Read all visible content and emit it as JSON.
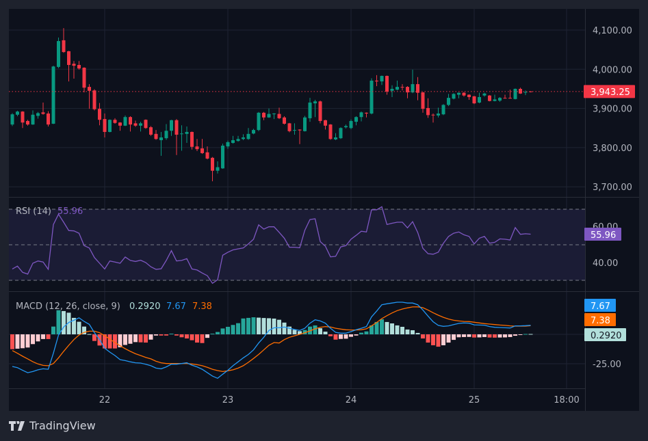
{
  "colors": {
    "up": "#089981",
    "down": "#f23645",
    "rsi": "#7e57c2",
    "macd": "#2196f3",
    "signal": "#ff6d00",
    "hist_up_strong": "#26a69a",
    "hist_up_weak": "#b2dfdb",
    "hist_down_strong": "#ff5252",
    "hist_down_weak": "#ffcdd2",
    "grid": "#1e2433",
    "background": "#0d111c"
  },
  "price_axis": {
    "ticks": [
      4100,
      4000,
      3900,
      3800,
      3700
    ],
    "labels": [
      "4,100.00",
      "4,000.00",
      "3,900.00",
      "3,800.00",
      "3,700.00"
    ],
    "last_price": 3943.25,
    "last_price_label": "3,943.25"
  },
  "time_axis": {
    "interval": "1h",
    "ticks": [
      {
        "t": "22T00",
        "label": "22"
      },
      {
        "t": "23T00",
        "label": "23"
      },
      {
        "t": "24T00",
        "label": "24"
      },
      {
        "t": "25T00",
        "label": "25"
      },
      {
        "t": "25T18",
        "label": "18:00"
      }
    ]
  },
  "rsi": {
    "label": "RSI (14)",
    "value_label": "55.96",
    "value": 55.96,
    "ticks": [
      60,
      40
    ],
    "tick_labels": [
      "60.00",
      "40.00"
    ],
    "bands": [
      70,
      50,
      30
    ]
  },
  "macd": {
    "label": "MACD (12, 26, close, 9)",
    "hist_label": "0.2920",
    "macd_label": "7.67",
    "signal_label": "7.38",
    "ticks": [
      -25
    ],
    "tick_labels": [
      "-25.00"
    ]
  },
  "branding": {
    "name": "TradingView"
  },
  "chart_data": {
    "type": "candlestick",
    "candles": [
      [
        "21T06",
        3859,
        3888,
        3855,
        3885
      ],
      [
        "21T07",
        3884,
        3894,
        3880,
        3892
      ],
      [
        "21T08",
        3892,
        3893,
        3850,
        3864
      ],
      [
        "21T09",
        3868,
        3871,
        3856,
        3859
      ],
      [
        "21T10",
        3859,
        3895,
        3858,
        3884
      ],
      [
        "21T11",
        3881,
        3891,
        3874,
        3888
      ],
      [
        "21T12",
        3890,
        3915,
        3884,
        3886
      ],
      [
        "21T13",
        3887,
        3893,
        3854,
        3859
      ],
      [
        "21T14",
        3861,
        4009,
        3860,
        4007
      ],
      [
        "21T15",
        4006,
        4081,
        4003,
        4072
      ],
      [
        "21T16",
        4074,
        4105,
        4042,
        4044
      ],
      [
        "21T17",
        4046,
        4047,
        3969,
        4011
      ],
      [
        "21T18",
        4014,
        4021,
        3976,
        4009
      ],
      [
        "21T19",
        4011,
        4021,
        3999,
        4002
      ],
      [
        "21T20",
        4004,
        4005,
        3941,
        3953
      ],
      [
        "21T21",
        3955,
        3962,
        3899,
        3945
      ],
      [
        "21T22",
        3946,
        3949,
        3895,
        3898
      ],
      [
        "21T23",
        3899,
        3914,
        3857,
        3871
      ],
      [
        "22T00",
        3873,
        3887,
        3826,
        3840
      ],
      [
        "22T01",
        3840,
        3872,
        3839,
        3871
      ],
      [
        "22T02",
        3871,
        3875,
        3861,
        3863
      ],
      [
        "22T03",
        3864,
        3865,
        3843,
        3856
      ],
      [
        "22T04",
        3856,
        3882,
        3855,
        3878
      ],
      [
        "22T05",
        3878,
        3880,
        3841,
        3859
      ],
      [
        "22T06",
        3862,
        3869,
        3853,
        3856
      ],
      [
        "22T07",
        3856,
        3866,
        3841,
        3862
      ],
      [
        "22T08",
        3871,
        3872,
        3848,
        3850
      ],
      [
        "22T09",
        3852,
        3855,
        3830,
        3833
      ],
      [
        "22T10",
        3835,
        3845,
        3820,
        3822
      ],
      [
        "22T11",
        3819,
        3840,
        3779,
        3826
      ],
      [
        "22T12",
        3824,
        3860,
        3820,
        3843
      ],
      [
        "22T13",
        3843,
        3871,
        3830,
        3870
      ],
      [
        "22T14",
        3870,
        3873,
        3781,
        3833
      ],
      [
        "22T15",
        3836,
        3857,
        3792,
        3836
      ],
      [
        "22T16",
        3835,
        3854,
        3812,
        3840
      ],
      [
        "22T17",
        3840,
        3841,
        3795,
        3802
      ],
      [
        "22T18",
        3803,
        3822,
        3791,
        3796
      ],
      [
        "22T19",
        3798,
        3822,
        3784,
        3786
      ],
      [
        "22T20",
        3788,
        3803,
        3770,
        3772
      ],
      [
        "22T21",
        3774,
        3776,
        3714,
        3741
      ],
      [
        "22T22",
        3741,
        3765,
        3734,
        3750
      ],
      [
        "22T23",
        3747,
        3810,
        3746,
        3805
      ],
      [
        "23T00",
        3803,
        3818,
        3797,
        3814
      ],
      [
        "23T01",
        3812,
        3830,
        3810,
        3819
      ],
      [
        "23T02",
        3817,
        3830,
        3815,
        3822
      ],
      [
        "23T03",
        3822,
        3834,
        3819,
        3826
      ],
      [
        "23T04",
        3822,
        3850,
        3820,
        3835
      ],
      [
        "23T05",
        3836,
        3848,
        3834,
        3845
      ],
      [
        "23T06",
        3845,
        3891,
        3842,
        3889
      ],
      [
        "23T07",
        3889,
        3891,
        3870,
        3877
      ],
      [
        "23T08",
        3877,
        3900,
        3876,
        3886
      ],
      [
        "23T09",
        3887,
        3888,
        3873,
        3887
      ],
      [
        "23T10",
        3886,
        3902,
        3873,
        3875
      ],
      [
        "23T11",
        3877,
        3880,
        3859,
        3861
      ],
      [
        "23T12",
        3862,
        3863,
        3839,
        3842
      ],
      [
        "23T13",
        3845,
        3862,
        3833,
        3845
      ],
      [
        "23T14",
        3846,
        3847,
        3809,
        3844
      ],
      [
        "23T15",
        3842,
        3881,
        3841,
        3877
      ],
      [
        "23T16",
        3875,
        3927,
        3866,
        3915
      ],
      [
        "23T17",
        3913,
        3922,
        3878,
        3918
      ],
      [
        "23T18",
        3918,
        3920,
        3862,
        3868
      ],
      [
        "23T19",
        3870,
        3871,
        3846,
        3856
      ],
      [
        "23T20",
        3859,
        3860,
        3820,
        3822
      ],
      [
        "23T21",
        3821,
        3837,
        3819,
        3826
      ],
      [
        "23T22",
        3824,
        3852,
        3822,
        3850
      ],
      [
        "23T23",
        3852,
        3859,
        3849,
        3855
      ],
      [
        "24T00",
        3850,
        3872,
        3847,
        3868
      ],
      [
        "24T01",
        3866,
        3880,
        3857,
        3878
      ],
      [
        "24T02",
        3878,
        3892,
        3867,
        3890
      ],
      [
        "24T03",
        3889,
        3890,
        3877,
        3887
      ],
      [
        "24T04",
        3887,
        3977,
        3885,
        3971
      ],
      [
        "24T05",
        3971,
        3985,
        3957,
        3969
      ],
      [
        "24T06",
        3969,
        3984,
        3960,
        3983
      ],
      [
        "24T07",
        3983,
        3984,
        3935,
        3943
      ],
      [
        "24T08",
        3945,
        3959,
        3929,
        3950
      ],
      [
        "24T09",
        3948,
        3971,
        3946,
        3955
      ],
      [
        "24T10",
        3955,
        3962,
        3946,
        3954
      ],
      [
        "24T11",
        3955,
        3957,
        3926,
        3941
      ],
      [
        "24T12",
        3941,
        3999,
        3939,
        3962
      ],
      [
        "24T13",
        3962,
        3980,
        3921,
        3940
      ],
      [
        "24T14",
        3941,
        3942,
        3889,
        3899
      ],
      [
        "24T15",
        3901,
        3926,
        3876,
        3883
      ],
      [
        "24T16",
        3884,
        3887,
        3864,
        3883
      ],
      [
        "24T17",
        3882,
        3902,
        3877,
        3887
      ],
      [
        "24T18",
        3885,
        3911,
        3883,
        3909
      ],
      [
        "24T19",
        3909,
        3937,
        3906,
        3927
      ],
      [
        "24T20",
        3925,
        3939,
        3923,
        3937
      ],
      [
        "24T21",
        3935,
        3941,
        3926,
        3940
      ],
      [
        "24T22",
        3940,
        3942,
        3930,
        3933
      ],
      [
        "24T23",
        3935,
        3936,
        3922,
        3929
      ],
      [
        "25T00",
        3931,
        3932,
        3911,
        3913
      ],
      [
        "25T01",
        3915,
        3940,
        3913,
        3929
      ],
      [
        "25T02",
        3933,
        3940,
        3930,
        3938
      ],
      [
        "25T03",
        3933,
        3934,
        3918,
        3919
      ],
      [
        "25T04",
        3919,
        3935,
        3918,
        3923
      ],
      [
        "25T05",
        3920,
        3929,
        3917,
        3927
      ],
      [
        "25T06",
        3927,
        3935,
        3925,
        3926
      ],
      [
        "25T07",
        3927,
        3948,
        3925,
        3926
      ],
      [
        "25T08",
        3924,
        3951,
        3923,
        3950
      ],
      [
        "25T09",
        3950,
        3953,
        3937,
        3938
      ],
      [
        "25T10",
        3941,
        3946,
        3934,
        3942
      ],
      [
        "25T11",
        3943.5,
        3944,
        3941,
        3943.25
      ]
    ],
    "rsi": [
      36.4,
      38.0,
      34.5,
      33.5,
      39.6,
      40.9,
      40.3,
      36.2,
      61.4,
      67.2,
      62.7,
      58,
      57.8,
      56.5,
      49.5,
      48.2,
      42.8,
      39.6,
      36.4,
      40.9,
      40.3,
      39.6,
      43.1,
      41.2,
      40.6,
      41.3,
      40,
      37.6,
      36.2,
      36.5,
      41.2,
      46.7,
      40.9,
      41.2,
      42.2,
      36.4,
      35.8,
      34.1,
      32.6,
      28.3,
      30.3,
      44.1,
      45.8,
      47.1,
      47.7,
      48.2,
      50.5,
      53.1,
      61.2,
      58.8,
      60.1,
      60.1,
      57,
      53.7,
      48.6,
      48.6,
      48.3,
      58.2,
      64.2,
      64.6,
      51.8,
      49.2,
      43.2,
      43.5,
      48.8,
      49.5,
      53.1,
      55.3,
      57.6,
      57.2,
      69.7,
      69.7,
      71.4,
      61.4,
      62.1,
      62.7,
      62.7,
      59.5,
      63,
      56.9,
      48,
      45,
      44.7,
      45.8,
      50.9,
      54.7,
      56.5,
      57.2,
      55.6,
      54.7,
      50.5,
      53.7,
      54.7,
      50.9,
      51.4,
      53.3,
      53.1,
      52.7,
      59.7,
      55.9,
      56.2,
      55.96
    ],
    "macd": [
      -27.3,
      -28.3,
      -30.6,
      -32.6,
      -31.6,
      -30.2,
      -29.3,
      -29.7,
      -16.1,
      -0.6,
      6.2,
      10.1,
      12,
      14,
      11,
      8.5,
      1.4,
      -4.5,
      -11.8,
      -15.1,
      -18,
      -21.5,
      -22.3,
      -23.4,
      -24.2,
      -24.4,
      -25.4,
      -26.7,
      -28.7,
      -29.3,
      -27.7,
      -25.4,
      -25.4,
      -24.8,
      -24.2,
      -26.2,
      -27.7,
      -29.7,
      -32.6,
      -35.5,
      -37.4,
      -33.9,
      -30.6,
      -26.7,
      -23.4,
      -20,
      -17.1,
      -13.2,
      -7.4,
      -2.5,
      3.3,
      5.6,
      5.6,
      6.2,
      5.2,
      4.1,
      3.3,
      5.2,
      9.5,
      12.4,
      11.4,
      9.5,
      5.2,
      1.7,
      1,
      1,
      2.3,
      3.9,
      5.2,
      6.6,
      14.9,
      19.8,
      25.2,
      26,
      26.6,
      27.3,
      27.3,
      26.6,
      26.6,
      25.2,
      20.7,
      15.5,
      10.7,
      7.6,
      6.8,
      7.2,
      8.3,
      9.3,
      9.7,
      9.5,
      8.1,
      7.9,
      7.8,
      6.6,
      6,
      5.8,
      5.6,
      5.4,
      7.2,
      7.2,
      7.4,
      7.67
    ],
    "signal": [
      -13.8,
      -16.1,
      -18.6,
      -20.9,
      -23.3,
      -25.2,
      -26.4,
      -26.7,
      -24.8,
      -20,
      -14.5,
      -9.3,
      -4.5,
      -0.6,
      1.7,
      2.7,
      2.7,
      1.4,
      -1.2,
      -4.1,
      -7,
      -9.7,
      -12.2,
      -14.5,
      -16.5,
      -18,
      -19.6,
      -20.9,
      -22.9,
      -24.2,
      -24.8,
      -24.8,
      -24.8,
      -24.8,
      -24.8,
      -25.2,
      -25.8,
      -26.7,
      -28.1,
      -29.7,
      -30.8,
      -31.6,
      -31,
      -30.2,
      -28.7,
      -26.7,
      -23.8,
      -20.5,
      -17.1,
      -13.2,
      -9.3,
      -7,
      -7.4,
      -4.5,
      -2.5,
      -1.2,
      0,
      1.4,
      2.9,
      4.7,
      6,
      6.6,
      6.2,
      5.2,
      4.5,
      3.9,
      3.7,
      3.7,
      3.9,
      4.7,
      7.2,
      10.1,
      13.4,
      15.9,
      18.2,
      20.2,
      21.5,
      22.5,
      23.3,
      23.4,
      22.7,
      20.7,
      18.4,
      16.3,
      14.5,
      13,
      12,
      11.4,
      11,
      10.9,
      10.3,
      9.7,
      9.1,
      8.7,
      8.3,
      7.9,
      7.6,
      7.2,
      7,
      7,
      7,
      7.38
    ],
    "histogram": [
      -12.6,
      -12.2,
      -11.8,
      -11.2,
      -8.3,
      -6,
      -4,
      -4,
      6.6,
      20.5,
      19.8,
      18.4,
      14,
      10.7,
      6.6,
      0.2,
      -5.6,
      -9.5,
      -12,
      -12,
      -12,
      -11,
      -9,
      -8,
      -6.6,
      -6.8,
      -7,
      -4.5,
      -1,
      -1,
      -1,
      0.6,
      -1,
      -2.5,
      -3.5,
      -5,
      -7,
      -7.4,
      -3,
      0.6,
      2,
      5,
      6.4,
      8,
      9.5,
      13.5,
      14,
      14.5,
      14.2,
      13.9,
      13.7,
      13.4,
      12.4,
      10,
      6.6,
      3.9,
      2.7,
      3.7,
      6.6,
      7.6,
      5.2,
      2.3,
      -1.6,
      -4.5,
      -3.9,
      -3.7,
      -2.1,
      -1,
      1.4,
      2.5,
      7.6,
      10.5,
      12.8,
      10.5,
      9.3,
      7.6,
      6.4,
      4.1,
      3.5,
      1.2,
      -3.5,
      -7,
      -9.3,
      -10.5,
      -9.3,
      -7,
      -4.7,
      -2.5,
      -2.3,
      -2.2,
      -2.7,
      -2.6,
      -2.3,
      -2.7,
      -2.8,
      -2.7,
      -2.6,
      -2.3,
      -1.2,
      -0.2,
      0.3,
      0.292
    ],
    "price_range": [
      3680,
      4130
    ],
    "rsi_range": [
      26,
      75
    ],
    "macd_range": [
      -46,
      36
    ],
    "grid": true
  }
}
